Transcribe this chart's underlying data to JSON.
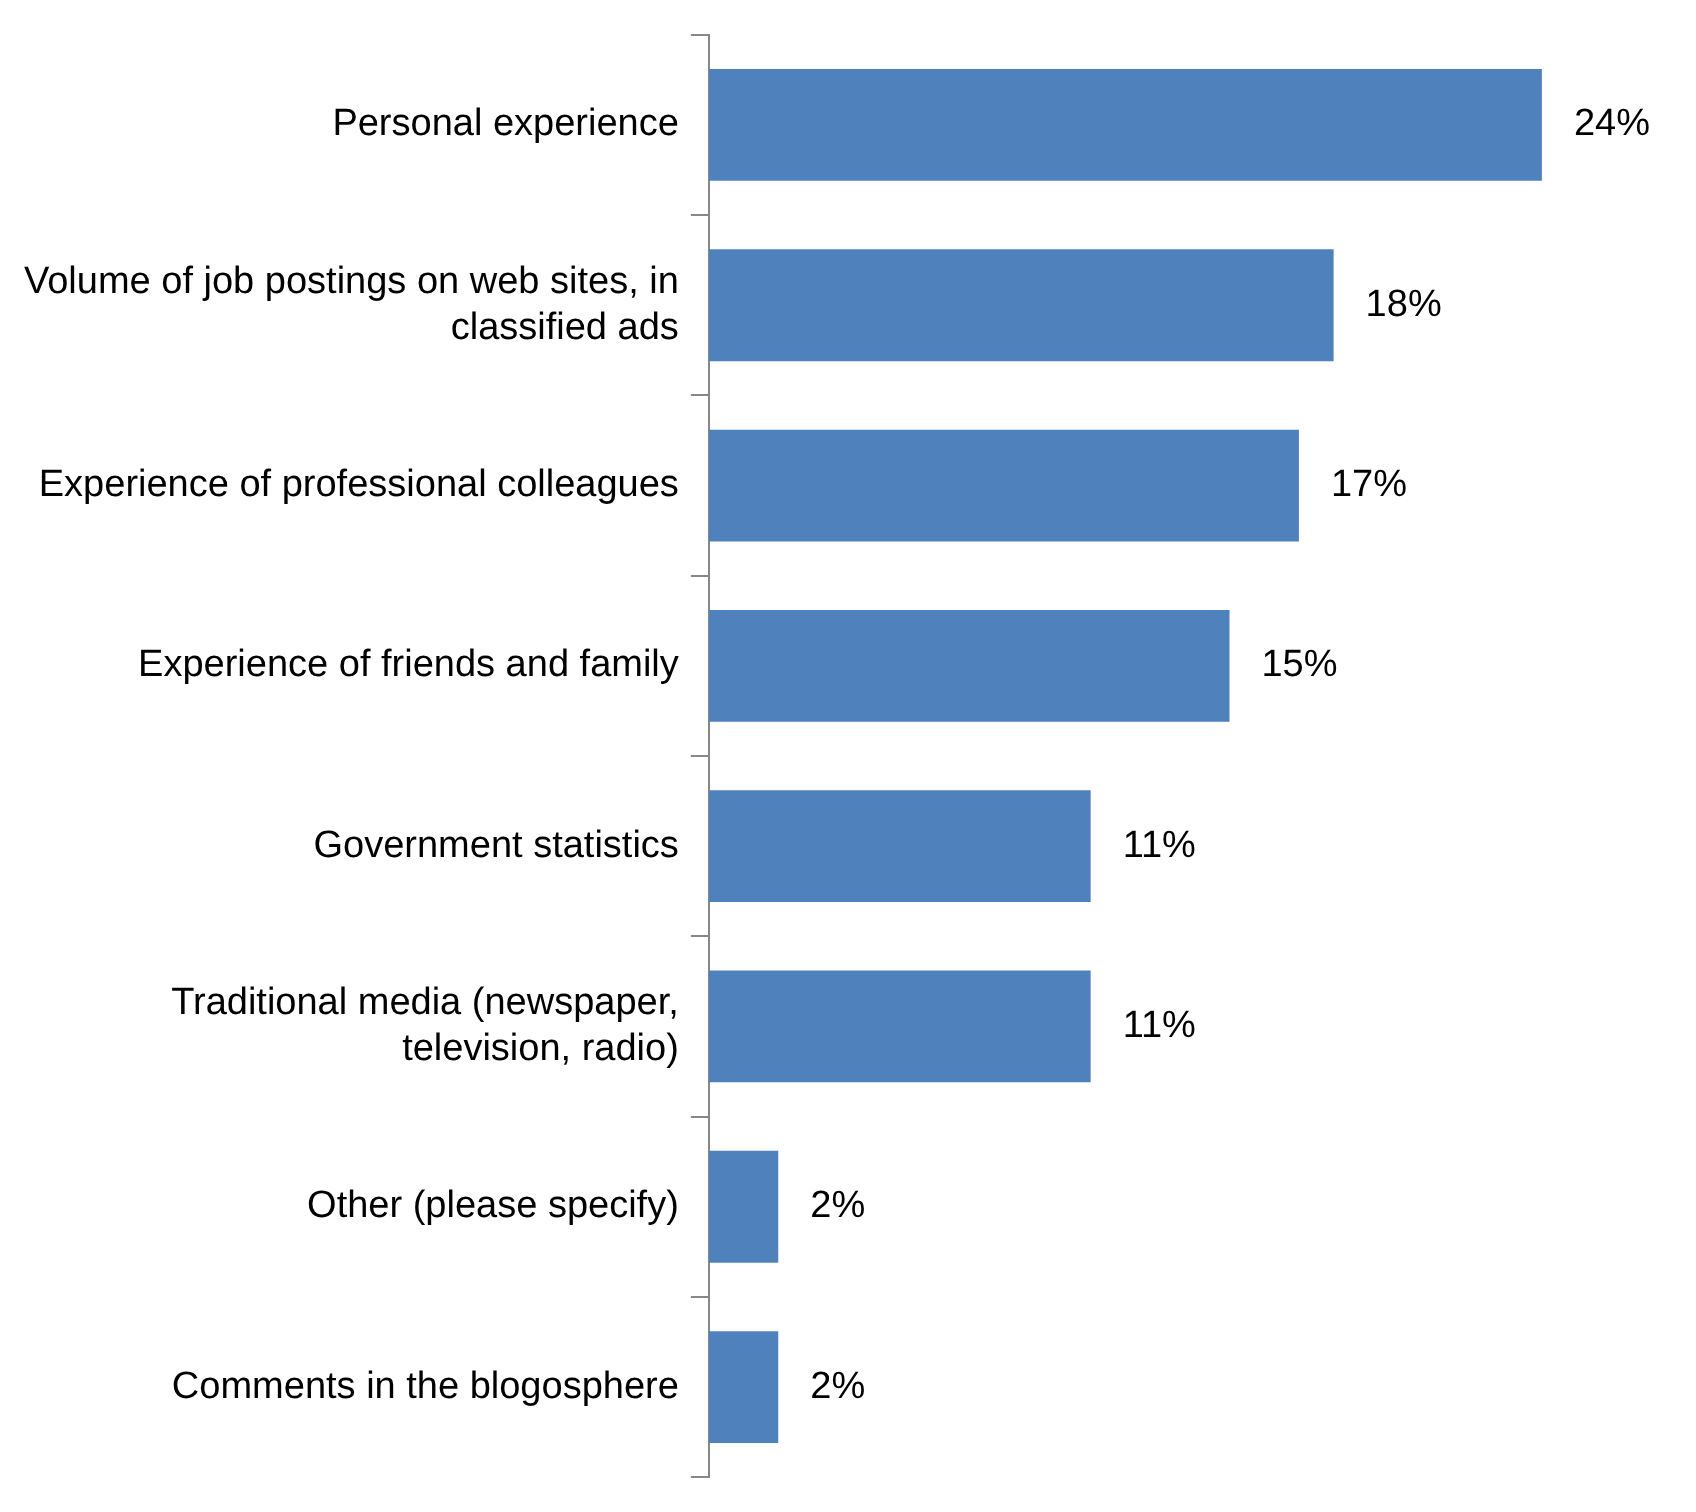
{
  "chart_data": {
    "type": "bar",
    "orientation": "horizontal",
    "categories": [
      "Personal experience",
      "Volume of job postings on web sites, in classified ads",
      "Experience of professional colleagues",
      "Experience of friends and family",
      "Government statistics",
      "Traditional media (newspaper, television, radio)",
      "Other (please specify)",
      "Comments in the blogosphere"
    ],
    "values": [
      24,
      18,
      17,
      15,
      11,
      11,
      2,
      2
    ],
    "value_labels": [
      "24%",
      "18%",
      "17%",
      "15%",
      "11%",
      "11%",
      "2%",
      "2%"
    ],
    "color": "#4f81bd",
    "grid": false,
    "legend": false
  }
}
